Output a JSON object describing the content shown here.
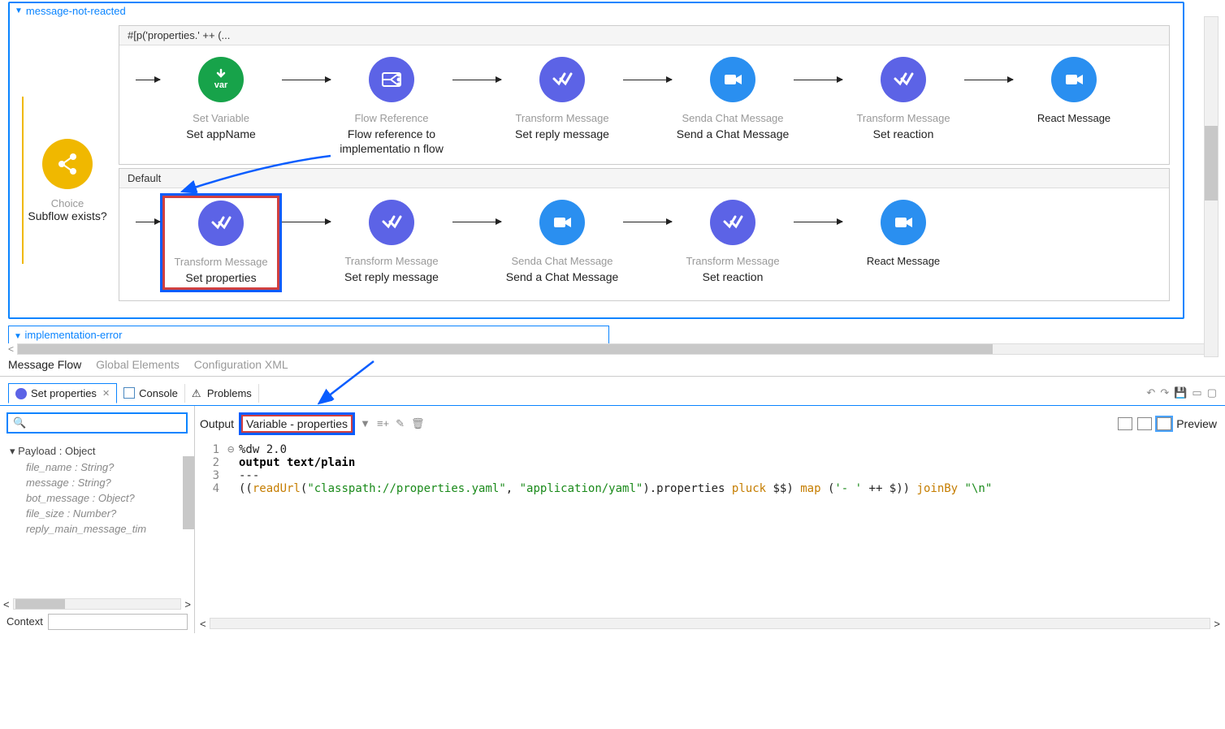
{
  "flow": {
    "title": "message-not-reacted",
    "choice": {
      "top": "Choice",
      "bot": "Subflow exists?"
    },
    "branch1": {
      "header": "#[p('properties.' ++ (...",
      "nodes": [
        {
          "icon": "var",
          "bg": "bg-green",
          "top": "Set Variable",
          "bot": "Set appName"
        },
        {
          "icon": "flowref",
          "bg": "bg-purple",
          "top": "Flow Reference",
          "bot": "Flow reference to implementatio n flow"
        },
        {
          "icon": "xform",
          "bg": "bg-purple",
          "top": "Transform Message",
          "bot": "Set reply message"
        },
        {
          "icon": "cam",
          "bg": "bg-blue",
          "top": "Senda Chat Message",
          "bot": "Send a Chat Message"
        },
        {
          "icon": "xform",
          "bg": "bg-purple",
          "top": "Transform Message",
          "bot": "Set reaction"
        },
        {
          "icon": "cam",
          "bg": "bg-blue",
          "top": "React Message",
          "bot": "",
          "topDark": true
        }
      ]
    },
    "branch2": {
      "header": "Default",
      "nodes": [
        {
          "icon": "xform",
          "bg": "bg-purple",
          "top": "Transform Message",
          "bot": "Set properties",
          "hl": true
        },
        {
          "icon": "xform",
          "bg": "bg-purple",
          "top": "Transform Message",
          "bot": "Set reply message"
        },
        {
          "icon": "cam",
          "bg": "bg-blue",
          "top": "Senda Chat Message",
          "bot": "Send a Chat Message"
        },
        {
          "icon": "xform",
          "bg": "bg-purple",
          "top": "Transform Message",
          "bot": "Set reaction"
        },
        {
          "icon": "cam",
          "bg": "bg-blue",
          "top": "React Message",
          "bot": "",
          "topDark": true
        }
      ]
    }
  },
  "subflow_title": "implementation-error",
  "bottom_tabs": [
    "Message Flow",
    "Global Elements",
    "Configuration XML"
  ],
  "panel_tabs": {
    "active": "Set properties",
    "others": [
      "Console",
      "Problems"
    ]
  },
  "tree": {
    "root": "Payload : Object",
    "items": [
      {
        "k": "file_name",
        "t": "String?"
      },
      {
        "k": "message",
        "t": "String?"
      },
      {
        "k": "bot_message",
        "t": "Object?"
      },
      {
        "k": "file_size",
        "t": "Number?"
      },
      {
        "k": "reply_main_message_tim",
        "t": ""
      }
    ]
  },
  "context_label": "Context",
  "output": {
    "label": "Output",
    "target": "Variable - properties",
    "preview": "Preview"
  },
  "code": {
    "lines": [
      {
        "n": "1",
        "html": "<span class='plain'>%dw 2.0</span>",
        "circle": true
      },
      {
        "n": "2",
        "html": "<span class='kw'>output text/plain</span>"
      },
      {
        "n": "3",
        "html": "<span class='plain'>---</span>"
      },
      {
        "n": "4",
        "html": "<span class='plain'>((</span><span class='fn'>readUrl</span><span class='plain'>(</span><span class='str'>\"classpath://properties.yaml\"</span><span class='plain'>, </span><span class='str'>\"application/yaml\"</span><span class='plain'>).properties </span><span class='fn'>pluck</span><span class='plain'> $$) </span><span class='fn'>map</span><span class='plain'> (</span><span class='str'>'- '</span><span class='plain'> ++ $)) </span><span class='fn'>joinBy</span><span class='plain'> </span><span class='str'>\"\\n\"</span>"
      }
    ]
  }
}
